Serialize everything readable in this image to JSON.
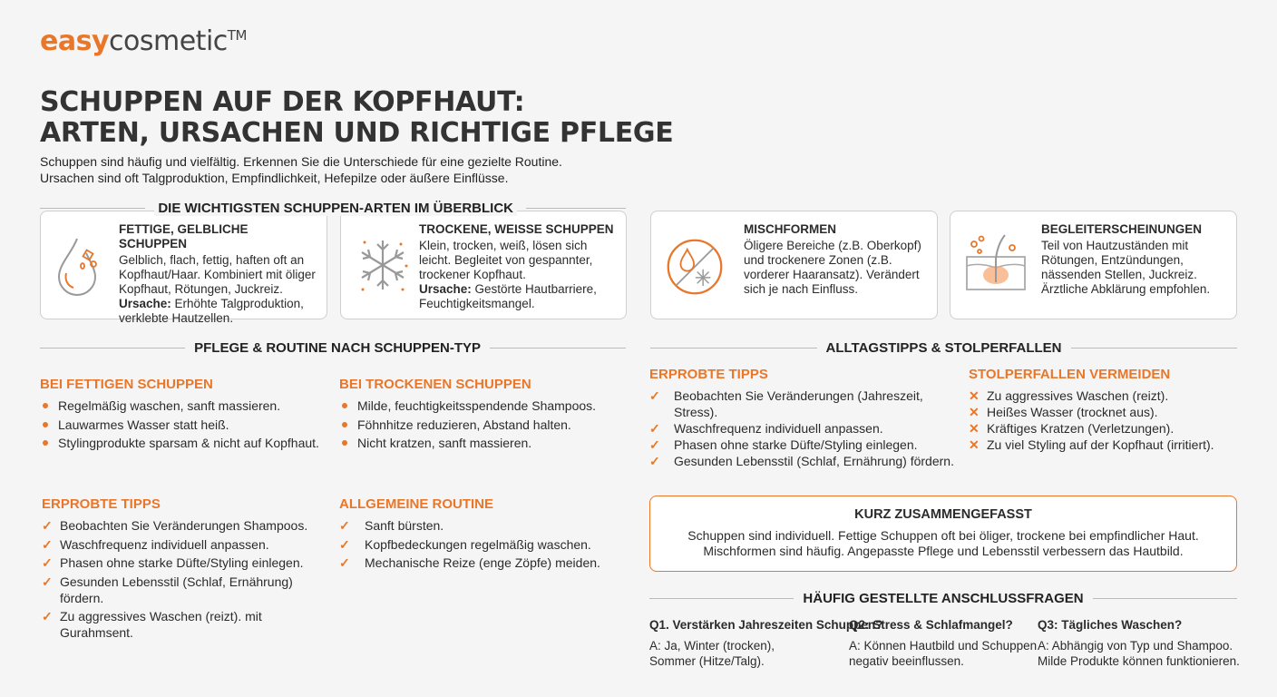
{
  "brand": {
    "easy": "easy",
    "cosmetic": "cosmetic",
    "tm": "TM"
  },
  "colors": {
    "accent": "#e8772a",
    "text": "#2b2b2b",
    "background": "#f5f5f5"
  },
  "title": {
    "line1": "SCHUPPEN AUF DER KOPFHAUT:",
    "line2": "ARTEN, URSACHEN UND RICHTIGE PFLEGE"
  },
  "intro": {
    "line1": "Schuppen sind häufig und vielfältig. Erkennen Sie die Unterschiede für eine gezielte Routine.",
    "line2": "Ursachen sind oft Talgproduktion, Empfindlichkeit, Hefepilze oder äußere Einflüsse."
  },
  "types": {
    "heading": "DIE WICHTIGSTEN SCHUPPEN-ARTEN IM ÜBERBLICK",
    "cards": [
      {
        "icon": "oil-drop-icon",
        "title": "FETTIGE, GELBLICHE SCHUPPEN",
        "text": "Gelblich, flach, fettig, haften oft an Kopfhaut/Haar. Kombiniert mit öliger Kopfhaut, Rötungen, Juckreiz.",
        "cause_label": "Ursache:",
        "cause": " Erhöhte Talgproduktion, verklebte Hautzellen."
      },
      {
        "icon": "snowflake-icon",
        "title": "TROCKENE, WEISSE SCHUPPEN",
        "text": "Klein, trocken, weiß, lösen sich leicht. Begleitet von gespannter, trockener Kopfhaut.",
        "cause_label": "Ursache:",
        "cause": " Gestörte Hautbarriere, Feuchtigkeitsmangel."
      },
      {
        "icon": "mixed-drop-snowflake-icon",
        "title": "MISCHFORMEN",
        "text": "Öligere Bereiche (z.B. Oberkopf) und trockenere Zonen (z.B. vorderer Haaransatz). Verändert sich je nach Einfluss."
      },
      {
        "icon": "skin-layer-icon",
        "title": "BEGLEITERSCHEINUNGEN",
        "text": "Teil von Hautzuständen mit Rötungen, Entzündungen, nässenden Stellen, Juckreiz. Ärztliche Abklärung empfohlen."
      }
    ]
  },
  "care": {
    "heading": "PFLEGE & ROUTINE NACH SCHUPPEN-TYP",
    "oily": {
      "title": "BEI FETTIGEN SCHUPPEN",
      "items": [
        "Regelmäßig waschen, sanft massieren.",
        "Lauwarmes Wasser statt heiß.",
        "Stylingprodukte sparsam & nicht auf Kopfhaut."
      ]
    },
    "dry": {
      "title": "BEI TROCKENEN SCHUPPEN",
      "items": [
        "Milde, feuchtigkeitsspendende Shampoos.",
        "Föhnhitze reduzieren, Abstand halten.",
        "Nicht kratzen, sanft massieren."
      ]
    },
    "tips": {
      "title": "ERPROBTE TIPPS",
      "items": [
        "Beobachten Sie Veränderungen Shampoos.",
        "Waschfrequenz individuell anpassen.",
        "Phasen ohne starke Düfte/Styling einlegen.",
        "Gesunden Lebensstil (Schlaf, Ernährung) fördern.",
        "Zu aggressives Waschen (reizt). mit Gurahmsent."
      ]
    },
    "routine": {
      "title": "ALLGEMEINE ROUTINE",
      "items": [
        "Sanft bürsten.",
        "Kopfbedeckungen regelmäßig waschen.",
        "Mechanische Reize (enge Zöpfe) meiden."
      ]
    }
  },
  "daily": {
    "heading": "ALLTAGSTIPPS & STOLPERFALLEN",
    "tips": {
      "title": "ERPROBTE TIPPS",
      "items": [
        "Beobachten Sie Veränderungen (Jahreszeit, Stress).",
        "Waschfrequenz individuell anpassen.",
        "Phasen ohne starke Düfte/Styling einlegen.",
        "Gesunden Lebensstil (Schlaf, Ernährung) fördern."
      ]
    },
    "pitfalls": {
      "title": "STOLPERFALLEN VERMEIDEN",
      "items": [
        "Zu aggressives Waschen (reizt).",
        "Heißes Wasser (trocknet aus).",
        "Kräftiges Kratzen (Verletzungen).",
        "Zu viel Styling auf der Kopfhaut (irritiert)."
      ]
    }
  },
  "summary": {
    "title": "KURZ ZUSAMMENGEFASST",
    "line1": "Schuppen sind individuell. Fettige Schuppen oft bei öliger, trockene bei empfindlicher Haut.",
    "line2": "Mischformen sind häufig. Angepasste Pflege und Lebensstil verbessern das Hautbild."
  },
  "faq": {
    "heading": "HÄUFIG GESTELLTE ANSCHLUSSFRAGEN",
    "items": [
      {
        "q": "Q1. Verstärken Jahreszeiten Schuppen?",
        "a1": "A: Ja, Winter (trocken),",
        "a2": "Sommer (Hitze/Talg)."
      },
      {
        "q": "Q2: Stress & Schlafmangel?",
        "a1": "A: Können Hautbild und Schuppen",
        "a2": "negativ beeinflussen."
      },
      {
        "q": "Q3: Tägliches Waschen?",
        "a1": "A: Abhängig von Typ und Shampoo.",
        "a2": "Milde Produkte können funktionieren."
      }
    ]
  }
}
